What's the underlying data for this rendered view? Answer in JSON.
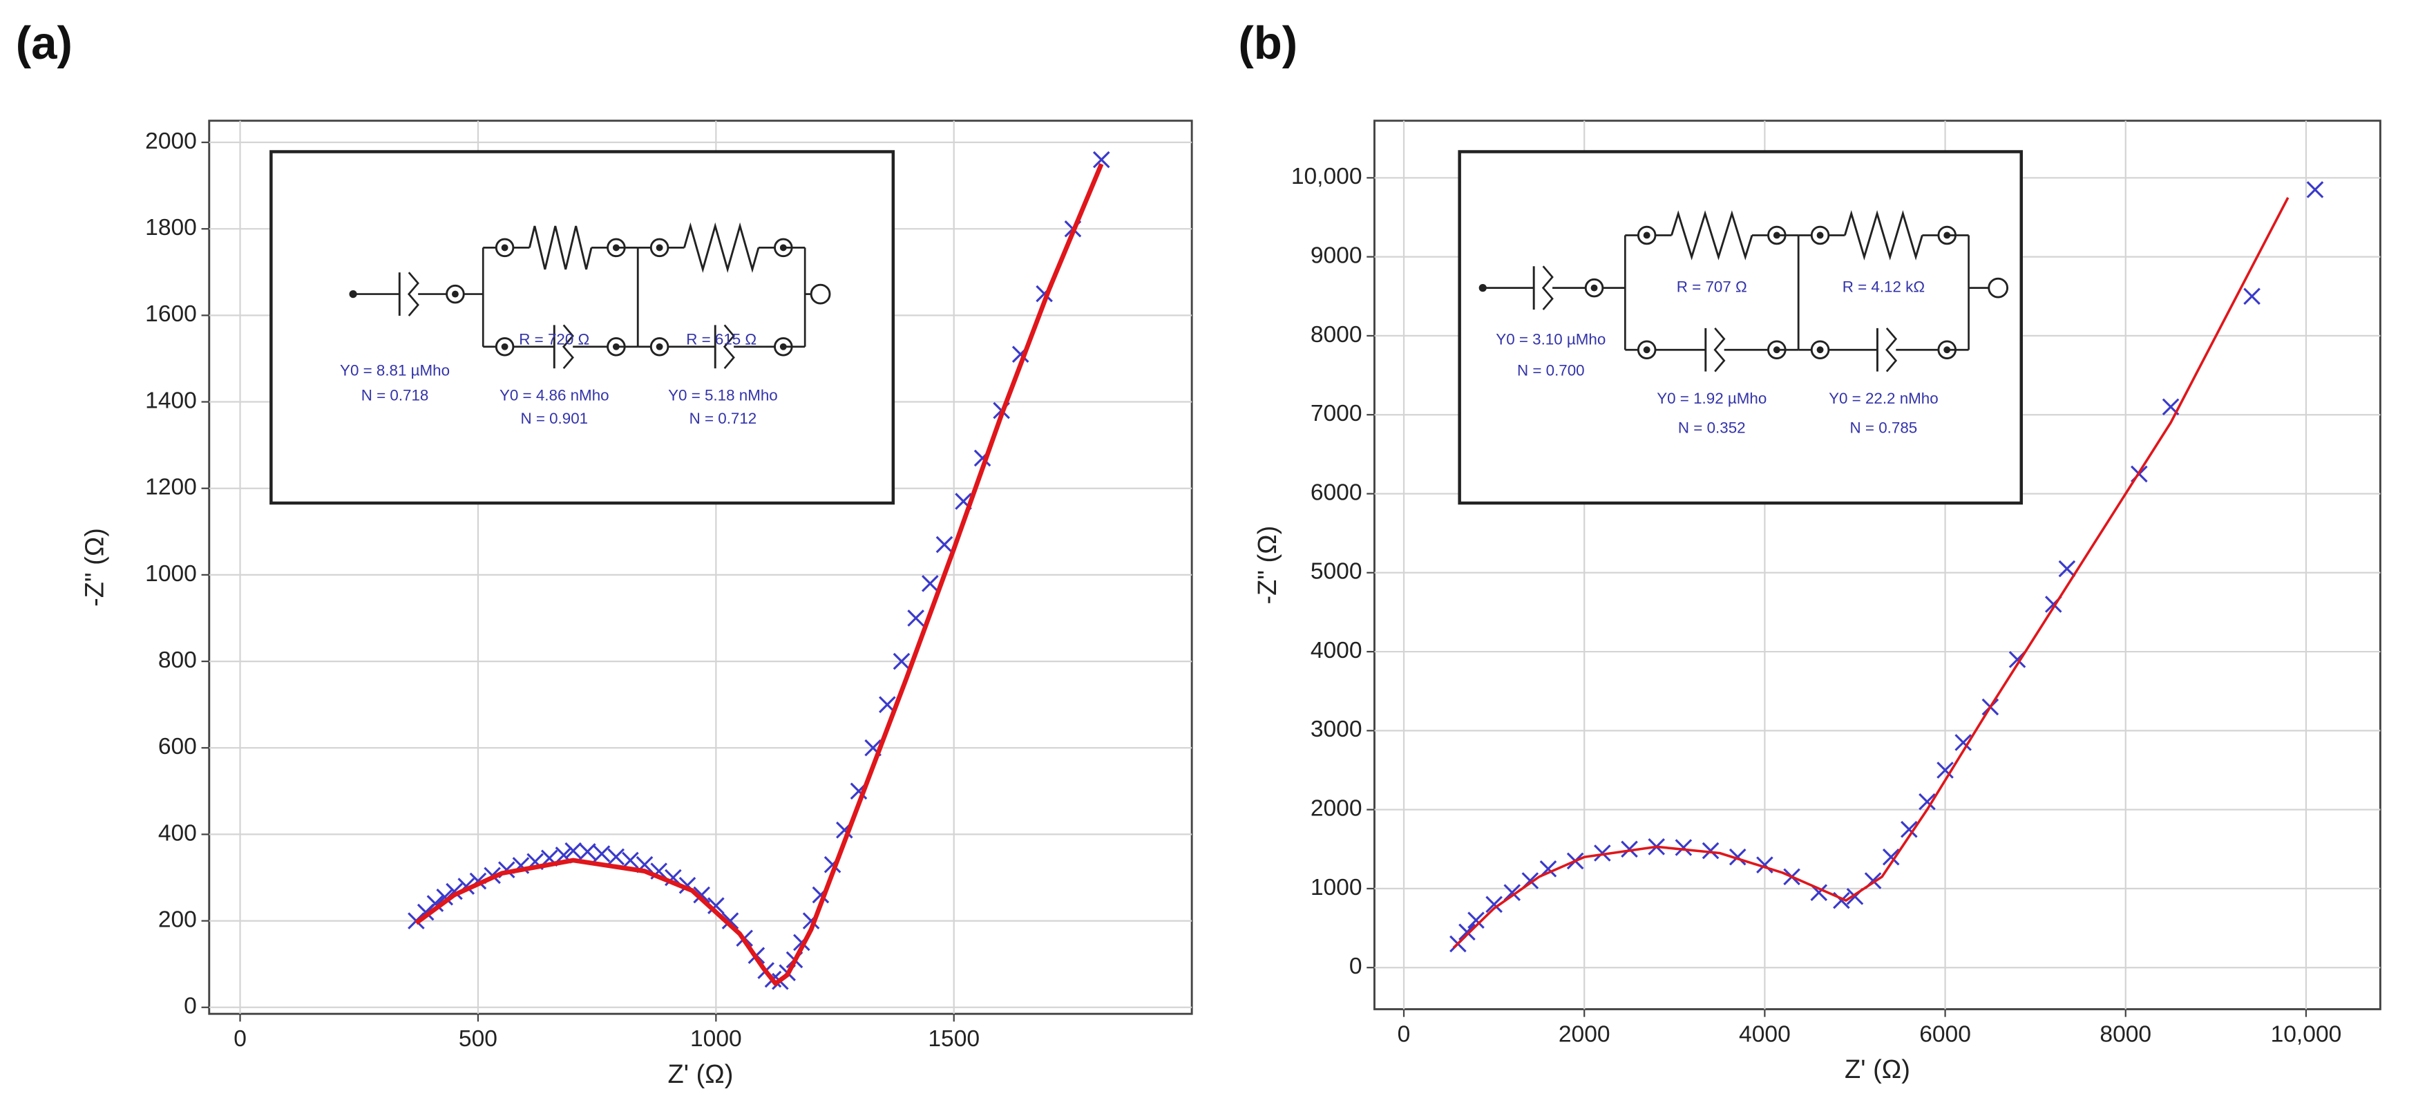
{
  "chart_data": [
    {
      "type": "scatter",
      "panel_label": "(a)",
      "x_label": "Z' (Ω)",
      "y_label": "-Z\" (Ω)",
      "xlim": [
        -65,
        2000
      ],
      "ylim": [
        -15,
        2050
      ],
      "xticks": [
        0,
        500,
        1000,
        1500
      ],
      "yticks": [
        0,
        200,
        400,
        600,
        800,
        1000,
        1200,
        1400,
        1600,
        1800,
        2000
      ],
      "grid": true,
      "inset_labels": [
        "R = 720 Ω",
        "R = 615 Ω",
        "Y0 = 8.81 µMho",
        "N = 0.718",
        "Y0 = 4.86 nMho",
        "N = 0.901",
        "Y0 = 5.18 nMho",
        "N = 0.712"
      ],
      "series": [
        {
          "color": "#3a3acc",
          "marker": "x",
          "x": [
            370,
            390,
            410,
            430,
            450,
            475,
            500,
            530,
            560,
            590,
            620,
            650,
            680,
            700,
            730,
            760,
            790,
            820,
            850,
            880,
            910,
            940,
            970,
            1000,
            1030,
            1060,
            1085,
            1105,
            1120,
            1135,
            1150,
            1165,
            1180,
            1200,
            1220,
            1245,
            1270,
            1300,
            1330,
            1360,
            1390,
            1420,
            1450,
            1480,
            1520,
            1560,
            1600,
            1640,
            1690,
            1750,
            1810
          ],
          "values": [
            200,
            220,
            240,
            255,
            268,
            280,
            292,
            305,
            318,
            328,
            337,
            345,
            352,
            362,
            360,
            355,
            348,
            340,
            330,
            315,
            300,
            282,
            260,
            235,
            200,
            160,
            120,
            85,
            65,
            60,
            80,
            110,
            150,
            200,
            260,
            330,
            410,
            500,
            600,
            700,
            800,
            900,
            980,
            1070,
            1170,
            1270,
            1380,
            1510,
            1650,
            1800,
            1960
          ]
        },
        {
          "color": "#e0161b",
          "marker": "line",
          "line_width": 3,
          "x": [
            370,
            450,
            550,
            700,
            850,
            950,
            1050,
            1100,
            1125,
            1150,
            1200,
            1300,
            1400,
            1500,
            1600,
            1700,
            1810
          ],
          "values": [
            195,
            260,
            310,
            340,
            315,
            270,
            170,
            90,
            55,
            75,
            180,
            470,
            760,
            1060,
            1370,
            1660,
            1950
          ]
        }
      ]
    },
    {
      "type": "scatter",
      "panel_label": "(b)",
      "x_label": "Z' (Ω)",
      "y_label": "-Z\" (Ω)",
      "xlim": [
        -326,
        10823
      ],
      "ylim": [
        -527,
        10723
      ],
      "xticks": [
        0,
        2000,
        4000,
        6000,
        8000,
        {
          "value": 10000,
          "label": "10,000"
        }
      ],
      "yticks": [
        0,
        1000,
        2000,
        3000,
        4000,
        5000,
        6000,
        7000,
        8000,
        9000,
        {
          "value": 10000,
          "label": "10,000"
        }
      ],
      "grid": true,
      "inset_labels": [
        "R = 707 Ω",
        "R = 4.12 kΩ",
        "Y0 = 3.10 µMho",
        "N = 0.700",
        "Y0 = 1.92 µMho",
        "N = 0.352",
        "Y0 = 22.2 nMho",
        "N = 0.785"
      ],
      "series": [
        {
          "color": "#3a3acc",
          "marker": "x",
          "x": [
            600,
            700,
            800,
            1000,
            1200,
            1400,
            1600,
            1900,
            2200,
            2500,
            2800,
            3100,
            3400,
            3700,
            4000,
            4300,
            4600,
            4850,
            5000,
            5200,
            5400,
            5600,
            5800,
            6000,
            6200,
            6500,
            6800,
            7200,
            7350,
            8150,
            8500,
            9400,
            10100
          ],
          "values": [
            300,
            450,
            600,
            800,
            950,
            1100,
            1250,
            1350,
            1450,
            1500,
            1530,
            1520,
            1480,
            1400,
            1300,
            1150,
            950,
            850,
            900,
            1100,
            1400,
            1750,
            2100,
            2500,
            2850,
            3300,
            3900,
            4600,
            5050,
            6250,
            7100,
            8500,
            9850
          ]
        },
        {
          "color": "#e0161b",
          "marker": "line",
          "line_width": 1.6,
          "x": [
            550,
            1000,
            1500,
            2000,
            2800,
            3500,
            4200,
            4900,
            5300,
            5800,
            6500,
            7500,
            8500,
            9800
          ],
          "values": [
            250,
            750,
            1150,
            1400,
            1530,
            1450,
            1200,
            850,
            1150,
            2000,
            3300,
            5100,
            6900,
            9750
          ]
        }
      ]
    }
  ]
}
